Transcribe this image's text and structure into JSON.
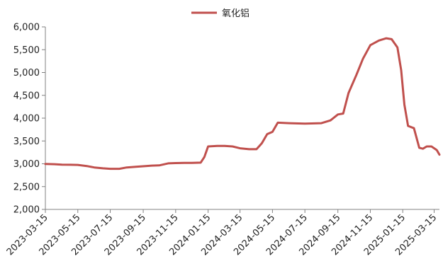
{
  "chart_data": {
    "type": "line",
    "title": "",
    "xlabel": "",
    "ylabel": "",
    "ylim": [
      2000,
      6000
    ],
    "y_ticks": [
      "2,000",
      "2,500",
      "3,000",
      "3,500",
      "4,000",
      "4,500",
      "5,000",
      "5,500",
      "6,000"
    ],
    "x_ticks": [
      "2023-03-15",
      "2023-05-15",
      "2023-07-15",
      "2023-09-15",
      "2023-11-15",
      "2024-01-15",
      "2024-03-15",
      "2024-05-15",
      "2024-07-15",
      "2024-09-15",
      "2024-11-15",
      "2025-01-15",
      "2025-03-15"
    ],
    "grid": false,
    "legend": "top-center",
    "series": [
      {
        "name": "氧化铝",
        "color": "#c0504d",
        "points": [
          [
            "2023-03-15",
            2995
          ],
          [
            "2023-04-01",
            2990
          ],
          [
            "2023-04-15",
            2980
          ],
          [
            "2023-05-01",
            2978
          ],
          [
            "2023-05-15",
            2975
          ],
          [
            "2023-06-01",
            2950
          ],
          [
            "2023-06-15",
            2920
          ],
          [
            "2023-07-01",
            2900
          ],
          [
            "2023-07-15",
            2890
          ],
          [
            "2023-08-01",
            2890
          ],
          [
            "2023-08-15",
            2920
          ],
          [
            "2023-09-01",
            2935
          ],
          [
            "2023-09-15",
            2945
          ],
          [
            "2023-10-01",
            2960
          ],
          [
            "2023-10-15",
            2965
          ],
          [
            "2023-11-01",
            3010
          ],
          [
            "2023-11-15",
            3015
          ],
          [
            "2023-12-01",
            3020
          ],
          [
            "2023-12-15",
            3020
          ],
          [
            "2024-01-01",
            3025
          ],
          [
            "2024-01-08",
            3150
          ],
          [
            "2024-01-15",
            3380
          ],
          [
            "2024-02-01",
            3390
          ],
          [
            "2024-02-15",
            3390
          ],
          [
            "2024-03-01",
            3380
          ],
          [
            "2024-03-15",
            3340
          ],
          [
            "2024-04-01",
            3320
          ],
          [
            "2024-04-15",
            3320
          ],
          [
            "2024-04-25",
            3450
          ],
          [
            "2024-05-05",
            3650
          ],
          [
            "2024-05-15",
            3700
          ],
          [
            "2024-05-25",
            3900
          ],
          [
            "2024-06-15",
            3890
          ],
          [
            "2024-07-15",
            3880
          ],
          [
            "2024-08-15",
            3890
          ],
          [
            "2024-09-01",
            3950
          ],
          [
            "2024-09-15",
            4080
          ],
          [
            "2024-09-25",
            4100
          ],
          [
            "2024-10-05",
            4550
          ],
          [
            "2024-10-20",
            4950
          ],
          [
            "2024-11-01",
            5300
          ],
          [
            "2024-11-15",
            5600
          ],
          [
            "2024-12-01",
            5700
          ],
          [
            "2024-12-15",
            5750
          ],
          [
            "2024-12-25",
            5730
          ],
          [
            "2025-01-05",
            5550
          ],
          [
            "2025-01-12",
            5050
          ],
          [
            "2025-01-18",
            4300
          ],
          [
            "2025-01-25",
            3830
          ],
          [
            "2025-02-05",
            3780
          ],
          [
            "2025-02-15",
            3350
          ],
          [
            "2025-02-22",
            3330
          ],
          [
            "2025-03-01",
            3380
          ],
          [
            "2025-03-10",
            3380
          ],
          [
            "2025-03-20",
            3300
          ],
          [
            "2025-03-25",
            3200
          ]
        ]
      }
    ]
  }
}
